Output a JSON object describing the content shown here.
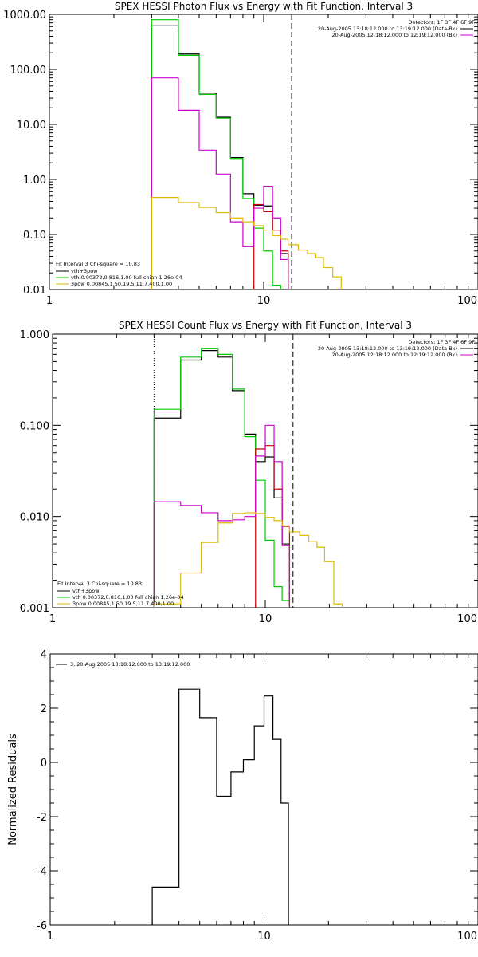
{
  "chart_data": [
    {
      "type": "line",
      "title": "SPEX HESSI Photon Flux vs Energy with Fit Function, Interval 3",
      "xscale": "log",
      "yscale": "log",
      "xlim": [
        1,
        100
      ],
      "ylim": [
        0.01,
        1000
      ],
      "x_ticks": [
        "1",
        "10",
        "100"
      ],
      "y_ticks": [
        "0.01",
        "0.10",
        "1.00",
        "10.00",
        "100.00",
        "1000.00"
      ],
      "vlines": [
        {
          "x": 3.0,
          "style": "dotted"
        },
        {
          "x": 13.5,
          "style": "dashed"
        }
      ],
      "legend_top": [
        "Detectors: 1F 3F 4F 6F 9F",
        "20-Aug-2005 13:18:12.000 to 13:19:12.000 (Data-Bk)",
        "20-Aug-2005 12:18:12.000 to 12:19:12.000 (Bk)"
      ],
      "legend_bottom": [
        "Fit Interval 3   Chi-square = 10.83",
        "vth+3pow",
        "vth 0.00372,0.816,1.00   full chian 1.26e-04",
        "3pow 0.00845,1.50,19.5,11.7,400,1.00"
      ],
      "series": [
        {
          "color": "#000000",
          "steps": [
            [
              3.0,
              4.0,
              620
            ],
            [
              4.0,
              5.0,
              190
            ],
            [
              5.0,
              6.0,
              37
            ],
            [
              6.0,
              7.0,
              13.5
            ],
            [
              7.0,
              8.0,
              2.5
            ],
            [
              8.0,
              9.0,
              0.55
            ],
            [
              9.0,
              10.0,
              0.34
            ],
            [
              10.0,
              11.0,
              0.33
            ],
            [
              11.0,
              12.0,
              0.12
            ],
            [
              12.0,
              13.0,
              0.045
            ]
          ]
        },
        {
          "color": "#00cc00",
          "steps": [
            [
              3.0,
              4.0,
              800
            ],
            [
              4.0,
              5.0,
              180
            ],
            [
              5.0,
              6.0,
              35
            ],
            [
              6.0,
              7.0,
              13.0
            ],
            [
              7.0,
              8.0,
              2.4
            ],
            [
              8.0,
              9.0,
              0.45
            ],
            [
              9.0,
              10.0,
              0.13
            ],
            [
              10.0,
              11.0,
              0.05
            ],
            [
              11.0,
              12.0,
              0.012
            ]
          ]
        },
        {
          "color": "#cc0000",
          "steps": [
            [
              9.0,
              10.0,
              0.35
            ],
            [
              10.0,
              11.0,
              0.26
            ],
            [
              11.0,
              12.0,
              0.12
            ],
            [
              12.0,
              13.0,
              0.05
            ]
          ]
        },
        {
          "color": "#cc00cc",
          "steps": [
            [
              3.0,
              4.0,
              70
            ],
            [
              4.0,
              5.0,
              18
            ],
            [
              5.0,
              6.0,
              3.4
            ],
            [
              6.0,
              7.0,
              1.25
            ],
            [
              7.0,
              8.0,
              0.17
            ],
            [
              8.0,
              9.0,
              0.06
            ],
            [
              9.0,
              10.0,
              0.3
            ],
            [
              10.0,
              11.0,
              0.75
            ],
            [
              11.0,
              12.0,
              0.2
            ],
            [
              12.0,
              13.0,
              0.035
            ]
          ]
        },
        {
          "color": "#ddbb00",
          "steps": [
            [
              3.0,
              4.0,
              0.47
            ],
            [
              4.0,
              5.0,
              0.38
            ],
            [
              5.0,
              6.0,
              0.31
            ],
            [
              6.0,
              7.0,
              0.25
            ],
            [
              7.0,
              8.0,
              0.2
            ],
            [
              8.0,
              9.0,
              0.17
            ],
            [
              9.0,
              10.0,
              0.145
            ],
            [
              10.0,
              11.0,
              0.12
            ],
            [
              11.0,
              12.0,
              0.095
            ],
            [
              12.0,
              13.0,
              0.082
            ],
            [
              13.0,
              14.5,
              0.065
            ],
            [
              14.5,
              16.0,
              0.052
            ],
            [
              16.0,
              17.5,
              0.045
            ],
            [
              17.5,
              19.0,
              0.038
            ],
            [
              19.0,
              21.0,
              0.025
            ],
            [
              21.0,
              23.0,
              0.017
            ]
          ]
        }
      ]
    },
    {
      "type": "line",
      "title": "SPEX HESSI Count Flux vs Energy with Fit Function, Interval 3",
      "xscale": "log",
      "yscale": "log",
      "xlim": [
        1,
        100
      ],
      "ylim": [
        0.001,
        1
      ],
      "x_ticks": [
        "1",
        "10",
        "100"
      ],
      "y_ticks": [
        "0.001",
        "0.010",
        "0.100",
        "1.000"
      ],
      "vlines": [
        {
          "x": 3.0,
          "style": "dotted"
        },
        {
          "x": 13.5,
          "style": "dashed"
        }
      ],
      "legend_top": [
        "Detectors: 1F 3F 4F 6F 9F",
        "20-Aug-2005 13:18:12.000 to 13:19:12.000 (Data-Bk)",
        "20-Aug-2005 12:18:12.000 to 12:19:12.000 (Bk)"
      ],
      "legend_bottom": [
        "Fit Interval 3   Chi-square = 10.83",
        "vth+3pow",
        "vth 0.00372,0.816,1.00   full chian 1.26e-04",
        "3pow 0.00845,1.50,19.5,11.7,400,1.00"
      ],
      "series": [
        {
          "color": "#000000",
          "steps": [
            [
              3.0,
              4.0,
              0.12
            ],
            [
              4.0,
              5.0,
              0.52
            ],
            [
              5.0,
              6.0,
              0.66
            ],
            [
              6.0,
              7.0,
              0.56
            ],
            [
              7.0,
              8.0,
              0.24
            ],
            [
              8.0,
              9.0,
              0.08
            ],
            [
              9.0,
              10.0,
              0.04
            ],
            [
              10.0,
              11.0,
              0.045
            ],
            [
              11.0,
              12.0,
              0.016
            ],
            [
              12.0,
              13.0,
              0.005
            ]
          ]
        },
        {
          "color": "#00cc00",
          "steps": [
            [
              3.0,
              4.0,
              0.15
            ],
            [
              4.0,
              5.0,
              0.56
            ],
            [
              5.0,
              6.0,
              0.7
            ],
            [
              6.0,
              7.0,
              0.6
            ],
            [
              7.0,
              8.0,
              0.25
            ],
            [
              8.0,
              9.0,
              0.075
            ],
            [
              9.0,
              10.0,
              0.025
            ],
            [
              10.0,
              11.0,
              0.0055
            ],
            [
              11.0,
              12.0,
              0.0017
            ],
            [
              12.0,
              13.0,
              0.0012
            ]
          ]
        },
        {
          "color": "#cc0000",
          "steps": [
            [
              9.0,
              10.0,
              0.055
            ],
            [
              10.0,
              11.0,
              0.06
            ],
            [
              11.0,
              12.0,
              0.02
            ],
            [
              12.0,
              13.0,
              0.0078
            ]
          ]
        },
        {
          "color": "#cc00cc",
          "steps": [
            [
              3.0,
              4.0,
              0.0145
            ],
            [
              4.0,
              5.0,
              0.0132
            ],
            [
              5.0,
              6.0,
              0.011
            ],
            [
              6.0,
              7.0,
              0.009
            ],
            [
              7.0,
              8.0,
              0.0092
            ],
            [
              8.0,
              9.0,
              0.01
            ],
            [
              9.0,
              10.0,
              0.046
            ],
            [
              10.0,
              11.0,
              0.1
            ],
            [
              11.0,
              12.0,
              0.04
            ],
            [
              12.0,
              13.0,
              0.0048
            ]
          ]
        },
        {
          "color": "#ddbb00",
          "steps": [
            [
              3.0,
              4.0,
              0.0011
            ],
            [
              4.0,
              5.0,
              0.0024
            ],
            [
              5.0,
              6.0,
              0.0052
            ],
            [
              6.0,
              7.0,
              0.0085
            ],
            [
              7.0,
              8.0,
              0.0108
            ],
            [
              8.0,
              9.0,
              0.011
            ],
            [
              9.0,
              10.0,
              0.0108
            ],
            [
              10.0,
              11.0,
              0.0098
            ],
            [
              11.0,
              12.0,
              0.009
            ],
            [
              12.0,
              13.0,
              0.0079
            ],
            [
              13.0,
              14.5,
              0.0068
            ],
            [
              14.5,
              16.0,
              0.0062
            ],
            [
              16.0,
              17.5,
              0.0053
            ],
            [
              17.5,
              19.0,
              0.0046
            ],
            [
              19.0,
              21.0,
              0.0032
            ],
            [
              21.0,
              23.0,
              0.0011
            ]
          ]
        }
      ]
    },
    {
      "type": "line",
      "title": "",
      "xscale": "log",
      "yscale": "linear",
      "xlim": [
        1,
        100
      ],
      "ylim": [
        -6,
        4
      ],
      "ylabel": "Normalized Residuals",
      "x_ticks": [
        "1",
        "10",
        "100"
      ],
      "y_ticks": [
        "-6",
        "-4",
        "-2",
        "0",
        "2",
        "4"
      ],
      "legend_top": [
        "3, 20-Aug-2005 13:18:12.000 to 13:19:12.000"
      ],
      "series": [
        {
          "color": "#000000",
          "steps": [
            [
              3.0,
              4.0,
              -4.6
            ],
            [
              4.0,
              5.0,
              2.7
            ],
            [
              5.0,
              6.0,
              1.65
            ],
            [
              6.0,
              7.0,
              -1.25
            ],
            [
              7.0,
              8.0,
              -0.35
            ],
            [
              8.0,
              9.0,
              0.1
            ],
            [
              9.0,
              10.0,
              1.35
            ],
            [
              10.0,
              11.0,
              2.45
            ],
            [
              11.0,
              12.0,
              0.85
            ],
            [
              12.0,
              13.0,
              -1.5
            ]
          ]
        }
      ]
    }
  ]
}
